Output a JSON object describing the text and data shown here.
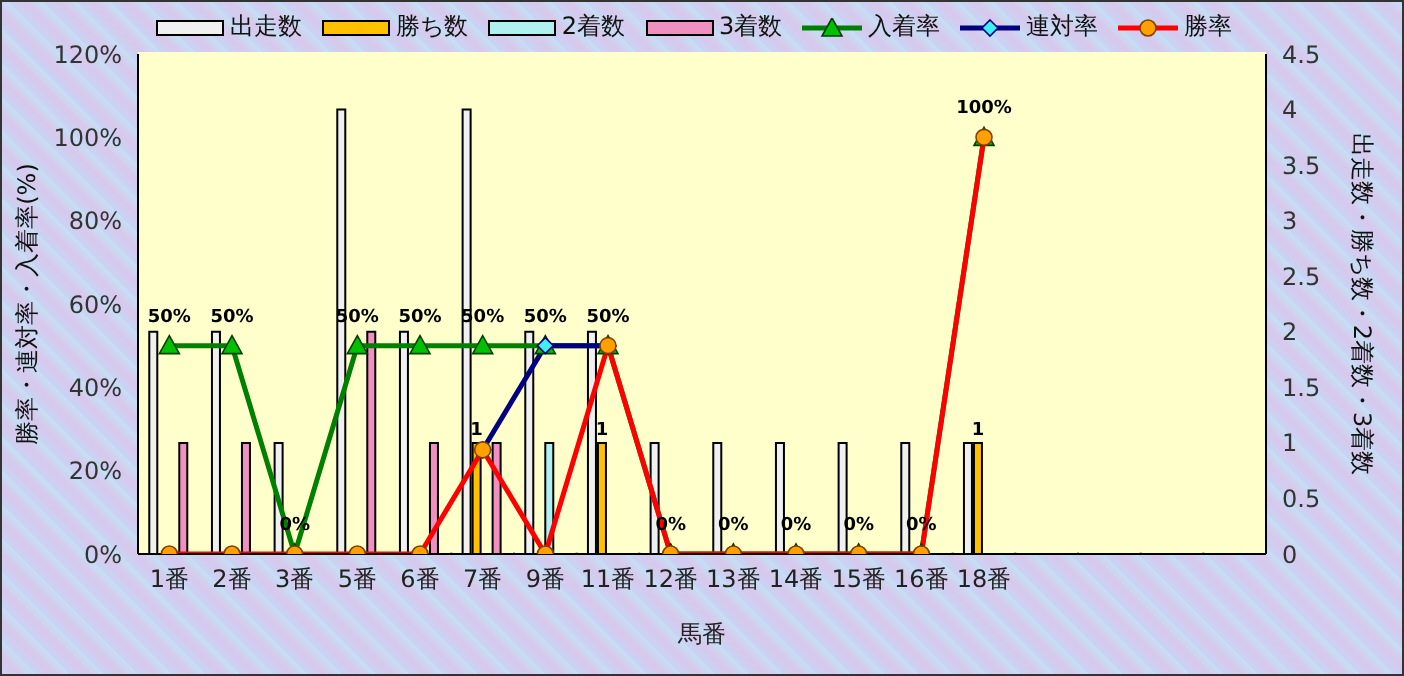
{
  "chart_data": {
    "type": "bar",
    "xlabel": "馬番",
    "ylabel": "勝率・連対率・入着率(%)",
    "y2label": "出走数・勝ち数・2着数・3着数",
    "categories": [
      "1番",
      "2番",
      "3番",
      "5番",
      "6番",
      "7番",
      "9番",
      "11番",
      "12番",
      "13番",
      "14番",
      "15番",
      "16番",
      "18番",
      null,
      null,
      null,
      null
    ],
    "series": [
      {
        "name": "出走数",
        "axis": "y2",
        "color": "#f0f0f0",
        "values": [
          2,
          2,
          1,
          4,
          2,
          4,
          2,
          2,
          1,
          1,
          1,
          1,
          1,
          1,
          null,
          null,
          null,
          null
        ]
      },
      {
        "name": "勝ち数",
        "axis": "y2",
        "color": "#ffc000",
        "values": [
          0,
          0,
          0,
          0,
          0,
          1,
          0,
          1,
          0,
          0,
          0,
          0,
          0,
          1,
          null,
          null,
          null,
          null
        ],
        "value_labels": [
          null,
          null,
          null,
          null,
          null,
          "1",
          null,
          "1",
          null,
          null,
          null,
          null,
          null,
          "1",
          null,
          null,
          null,
          null
        ]
      },
      {
        "name": "2着数",
        "axis": "y2",
        "color": "#b0f0f0",
        "values": [
          0,
          0,
          0,
          0,
          0,
          0,
          1,
          0,
          0,
          0,
          0,
          0,
          0,
          0,
          null,
          null,
          null,
          null
        ]
      },
      {
        "name": "3着数",
        "axis": "y2",
        "color": "#f090c0",
        "values": [
          1,
          1,
          0,
          2,
          1,
          1,
          0,
          0,
          0,
          0,
          0,
          0,
          0,
          0,
          null,
          null,
          null,
          null
        ]
      },
      {
        "name": "入着率",
        "type": "line",
        "axis": "y",
        "color": "#008000",
        "marker": "triangle",
        "values": [
          50,
          50,
          0,
          50,
          50,
          50,
          50,
          50,
          0,
          0,
          0,
          0,
          0,
          100,
          null,
          null,
          null,
          null
        ],
        "value_labels": [
          "50%",
          "50%",
          "0%",
          "50%",
          "50%",
          "50%",
          "50%",
          "50%",
          "0%",
          "0%",
          "0%",
          "0%",
          "0%",
          "100%",
          null,
          null,
          null,
          null
        ]
      },
      {
        "name": "連対率",
        "type": "line",
        "axis": "y",
        "color": "#000080",
        "marker": "diamond",
        "values": [
          null,
          null,
          null,
          null,
          null,
          25,
          50,
          50,
          null,
          null,
          null,
          null,
          null,
          null,
          null,
          null,
          null,
          null
        ]
      },
      {
        "name": "勝率",
        "type": "line",
        "axis": "y",
        "color": "#ff0000",
        "marker": "circle",
        "values": [
          0,
          0,
          0,
          0,
          0,
          25,
          0,
          50,
          0,
          0,
          0,
          0,
          0,
          100,
          null,
          null,
          null,
          null
        ]
      }
    ],
    "ylim": [
      0,
      120
    ],
    "yticks": [
      {
        "value": 0,
        "label": "0%"
      },
      {
        "value": 20,
        "label": "20%"
      },
      {
        "value": 40,
        "label": "40%"
      },
      {
        "value": 60,
        "label": "60%"
      },
      {
        "value": 80,
        "label": "80%"
      },
      {
        "value": 100,
        "label": "100%"
      },
      {
        "value": 120,
        "label": "120%"
      }
    ],
    "y2lim": [
      0,
      4.5
    ],
    "y2ticks": [
      0,
      0.5,
      1,
      1.5,
      2,
      2.5,
      3,
      3.5,
      4,
      4.5
    ],
    "grid": true,
    "legend": "top"
  }
}
